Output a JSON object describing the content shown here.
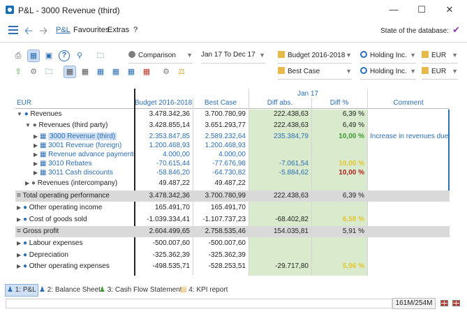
{
  "window": {
    "title": "P&L - 3000 Revenue (third)"
  },
  "nav": {
    "tab_pl": "P&L",
    "tab_fav": "Favourites",
    "tab_extras": "Extras",
    "tab_help": "?",
    "db_state_label": "State of the database:"
  },
  "toolbar": {
    "row1": {
      "view_mode": "Comparison",
      "period": "Jan 17 To Dec 17",
      "version": "Budget 2016-2018",
      "entity": "Holding Inc.",
      "currency": "EUR"
    },
    "row2": {
      "scenario": "Best Case",
      "entity": "Holding Inc.",
      "currency": "EUR"
    }
  },
  "grid": {
    "header_top": "Jan 17",
    "columns": [
      "EUR",
      "Budget 2016-2018",
      "Best Case",
      "Diff abs.",
      "Diff %",
      "Comment"
    ],
    "rows": [
      {
        "label": "Revenues",
        "budget": "3.478.342,36",
        "best": "3.700.780,99",
        "diff": "222.438,63",
        "pct": "6,39 %",
        "comment": ""
      },
      {
        "label": "Revenues (third party)",
        "budget": "3.428.855,14",
        "best": "3.651.293,77",
        "diff": "222.438,63",
        "pct": "6,49 %",
        "comment": ""
      },
      {
        "label": "3000 Revenue (third)",
        "budget": "2.353.847,85",
        "best": "2.589.232,64",
        "diff": "235.384,79",
        "pct": "10,00 %",
        "comment": "Increase in revenues due to"
      },
      {
        "label": "3001 Revenue (foreign)",
        "budget": "1.200.468,93",
        "best": "1.200.468,93",
        "diff": "",
        "pct": "",
        "comment": ""
      },
      {
        "label": "Revenue advance payments",
        "budget": "4.000,00",
        "best": "4.000,00",
        "diff": "",
        "pct": "",
        "comment": ""
      },
      {
        "label": "3010 Rebates",
        "budget": "-70.615,44",
        "best": "-77.676,98",
        "diff": "-7.061,54",
        "pct": "10,00 %",
        "comment": ""
      },
      {
        "label": "3011 Cash discounts",
        "budget": "-58.846,20",
        "best": "-64.730,82",
        "diff": "-5.884,62",
        "pct": "10,00 %",
        "comment": ""
      },
      {
        "label": "Revenues (intercompany)",
        "budget": "49.487,22",
        "best": "49.487,22",
        "diff": "",
        "pct": "",
        "comment": ""
      },
      {
        "label": "Total operating performance",
        "budget": "3.478.342,36",
        "best": "3.700.780,99",
        "diff": "222.438,63",
        "pct": "6,39 %",
        "comment": ""
      },
      {
        "label": "Other operating income",
        "budget": "165.491,70",
        "best": "165.491,70",
        "diff": "",
        "pct": "",
        "comment": ""
      },
      {
        "label": "Cost of goods sold",
        "budget": "-1.039.334,41",
        "best": "-1.107.737,23",
        "diff": "-68.402,82",
        "pct": "6,58 %",
        "comment": ""
      },
      {
        "label": "Gross profit",
        "budget": "2.604.499,65",
        "best": "2.758.535,46",
        "diff": "154.035,81",
        "pct": "5,91 %",
        "comment": ""
      },
      {
        "label": "Labour expenses",
        "budget": "-500.007,60",
        "best": "-500.007,60",
        "diff": "",
        "pct": "",
        "comment": ""
      },
      {
        "label": "Depreciation",
        "budget": "-325.362,39",
        "best": "-325.362,39",
        "diff": "",
        "pct": "",
        "comment": ""
      },
      {
        "label": "Other operating expenses",
        "budget": "-498.535,71",
        "best": "-528.253,51",
        "diff": "-29.717,80",
        "pct": "5,96 %",
        "comment": ""
      }
    ]
  },
  "bottom_tabs": [
    "1: P&L",
    "2: Balance Sheet",
    "3: Cash Flow Statement",
    "4: KPI report"
  ],
  "status": {
    "memory": "161M/254M"
  },
  "colors": {
    "accent": "#2c6fb4",
    "green_cell": "#d9ebcc",
    "pct_green": "#3c9a2f",
    "pct_red": "#b21f1f",
    "pct_yellow": "#e3c531"
  }
}
